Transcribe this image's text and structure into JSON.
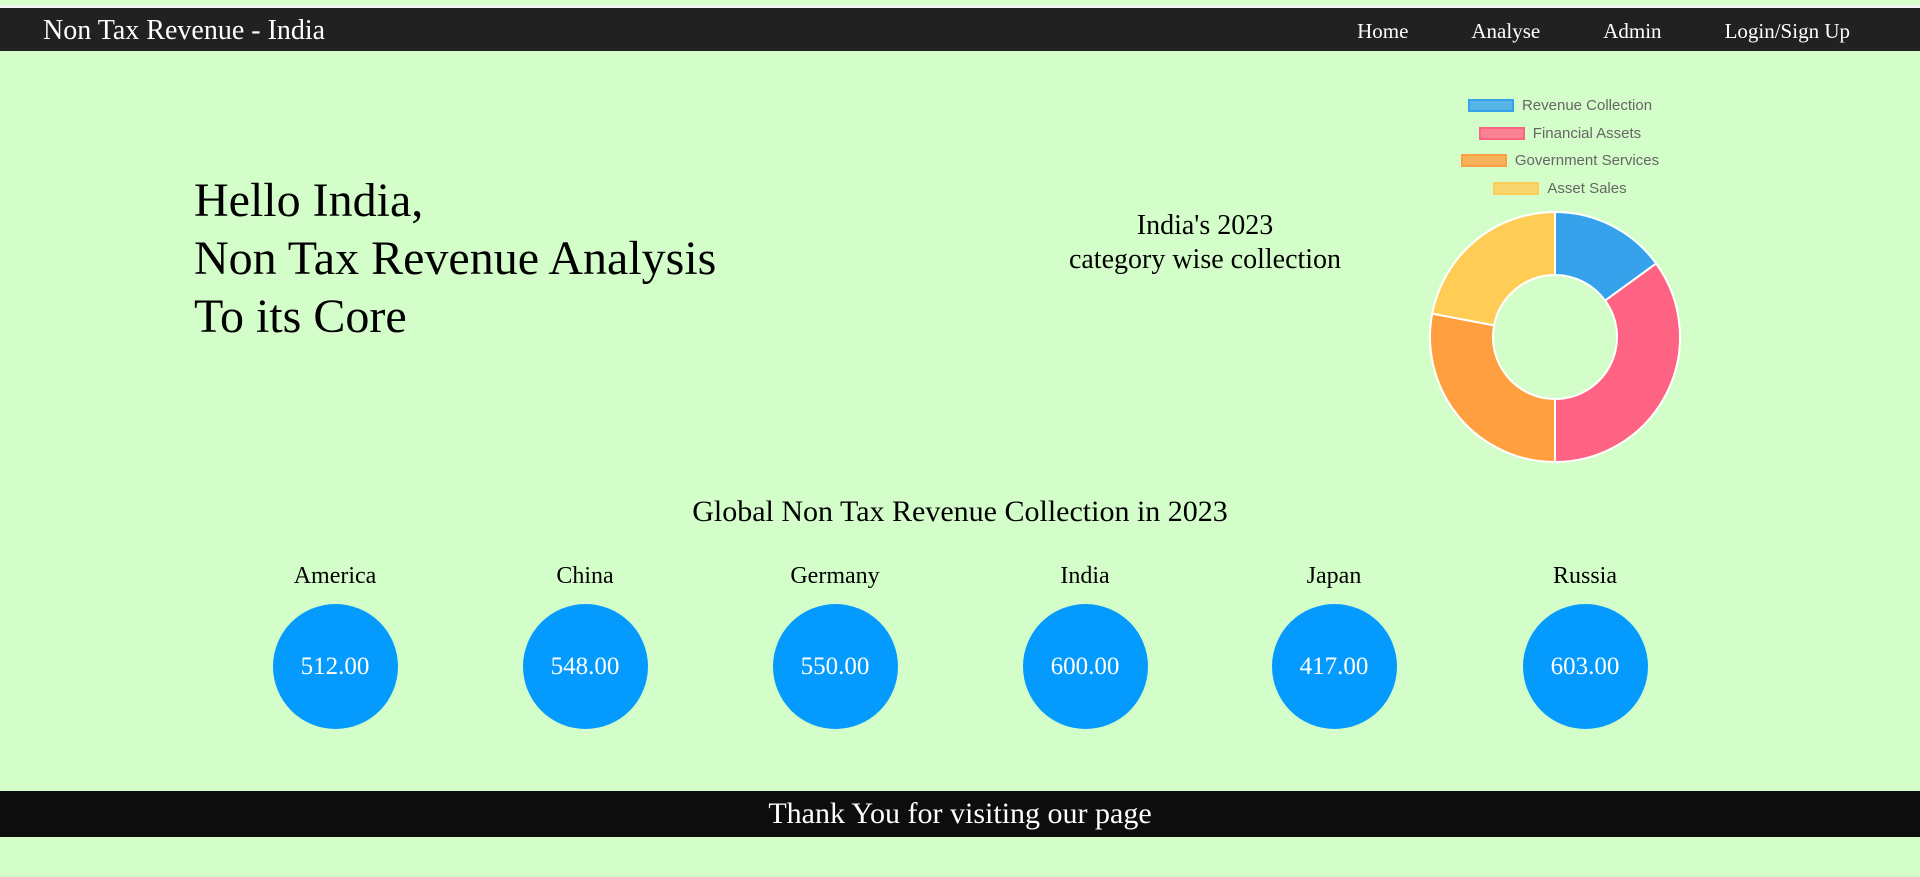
{
  "navbar": {
    "brand": "Non Tax Revenue - India",
    "links": [
      "Home",
      "Analyse",
      "Admin",
      "Login/Sign Up"
    ]
  },
  "hero": {
    "lines": [
      "Hello India,",
      "Non Tax Revenue Analysis",
      "To its Core"
    ]
  },
  "chart_caption": {
    "line1": "India's 2023",
    "line2": "category wise collection"
  },
  "chart_data": {
    "type": "pie",
    "donut": true,
    "categories": [
      "Revenue Collection",
      "Financial Assets",
      "Government Services",
      "Asset Sales"
    ],
    "values": [
      15,
      35,
      28,
      22
    ],
    "colors": [
      "#36a2eb",
      "#ff6384",
      "#ff9f40",
      "#ffcd56"
    ],
    "legend_position": "top"
  },
  "global": {
    "title": "Global Non Tax Revenue Collection in 2023",
    "countries": [
      {
        "name": "America",
        "value": "512.00"
      },
      {
        "name": "China",
        "value": "548.00"
      },
      {
        "name": "Germany",
        "value": "550.00"
      },
      {
        "name": "India",
        "value": "600.00"
      },
      {
        "name": "Japan",
        "value": "417.00"
      },
      {
        "name": "Russia",
        "value": "603.00"
      }
    ]
  },
  "footer": {
    "text": "Thank You for visiting our page"
  },
  "colors": {
    "background": "#d4fec9",
    "navbar": "#212121",
    "footer": "#0d0d0d",
    "circle": "#059bfe"
  }
}
